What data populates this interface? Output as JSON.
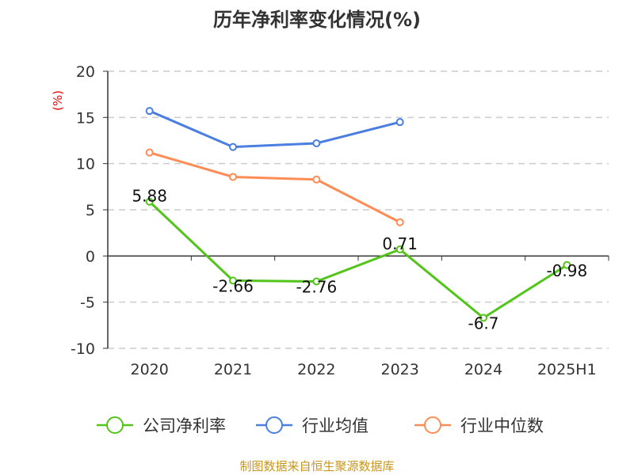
{
  "chart_data": {
    "type": "line",
    "title": "历年净利率变化情况(%)",
    "ylabel": "(%)",
    "xlabel": "",
    "categories": [
      "2020",
      "2021",
      "2022",
      "2023",
      "2024",
      "2025H1"
    ],
    "ylim": [
      -10,
      20
    ],
    "yticks": [
      -10,
      -5,
      0,
      5,
      10,
      15,
      20
    ],
    "grid": true,
    "legend_position": "bottom",
    "series": [
      {
        "name": "公司净利率",
        "color": "#52c41a",
        "values": [
          5.88,
          -2.66,
          -2.76,
          0.71,
          -6.7,
          -0.98
        ],
        "labels": [
          "5.88",
          "-2.66",
          "-2.76",
          "0.71",
          "-6.7",
          "-0.98"
        ]
      },
      {
        "name": "行业均值",
        "color": "#4a7ee0",
        "values": [
          15.7,
          11.8,
          12.2,
          14.5,
          null,
          null
        ]
      },
      {
        "name": "行业中位数",
        "color": "#ff8c55",
        "values": [
          11.2,
          8.56,
          8.28,
          3.65,
          null,
          null
        ]
      }
    ]
  },
  "footer": "制图数据来自恒生聚源数据库"
}
